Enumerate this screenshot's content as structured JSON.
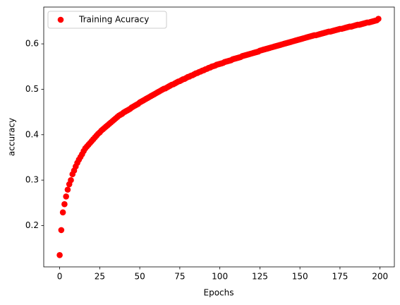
{
  "chart_data": {
    "type": "scatter",
    "xlabel": "Epochs",
    "ylabel": "accuracy",
    "x": [
      0,
      1,
      2,
      3,
      4,
      5,
      6,
      7,
      8,
      9,
      10,
      11,
      12,
      13,
      14,
      15,
      16,
      17,
      18,
      19,
      20,
      21,
      22,
      23,
      24,
      25,
      26,
      27,
      28,
      29,
      30,
      31,
      32,
      33,
      34,
      35,
      36,
      37,
      38,
      39,
      40,
      41,
      42,
      43,
      44,
      45,
      46,
      47,
      48,
      49,
      50,
      51,
      52,
      53,
      54,
      55,
      56,
      57,
      58,
      59,
      60,
      61,
      62,
      63,
      64,
      65,
      66,
      67,
      68,
      69,
      70,
      71,
      72,
      73,
      74,
      75,
      76,
      77,
      78,
      79,
      80,
      81,
      82,
      83,
      84,
      85,
      86,
      87,
      88,
      89,
      90,
      91,
      92,
      93,
      94,
      95,
      96,
      97,
      98,
      99,
      100,
      101,
      102,
      103,
      104,
      105,
      106,
      107,
      108,
      109,
      110,
      111,
      112,
      113,
      114,
      115,
      116,
      117,
      118,
      119,
      120,
      121,
      122,
      123,
      124,
      125,
      126,
      127,
      128,
      129,
      130,
      131,
      132,
      133,
      134,
      135,
      136,
      137,
      138,
      139,
      140,
      141,
      142,
      143,
      144,
      145,
      146,
      147,
      148,
      149,
      150,
      151,
      152,
      153,
      154,
      155,
      156,
      157,
      158,
      159,
      160,
      161,
      162,
      163,
      164,
      165,
      166,
      167,
      168,
      169,
      170,
      171,
      172,
      173,
      174,
      175,
      176,
      177,
      178,
      179,
      180,
      181,
      182,
      183,
      184,
      185,
      186,
      187,
      188,
      189,
      190,
      191,
      192,
      193,
      194,
      195,
      196,
      197,
      198,
      199
    ],
    "series": [
      {
        "name": "Training Acuracy",
        "color": "#ff0000",
        "values": [
          0.135,
          0.19,
          0.229,
          0.247,
          0.264,
          0.279,
          0.291,
          0.3,
          0.313,
          0.321,
          0.33,
          0.338,
          0.345,
          0.351,
          0.357,
          0.364,
          0.37,
          0.374,
          0.378,
          0.382,
          0.386,
          0.39,
          0.394,
          0.398,
          0.402,
          0.405,
          0.409,
          0.412,
          0.415,
          0.418,
          0.421,
          0.424,
          0.427,
          0.43,
          0.433,
          0.436,
          0.439,
          0.442,
          0.444,
          0.446,
          0.449,
          0.451,
          0.453,
          0.455,
          0.457,
          0.46,
          0.462,
          0.464,
          0.466,
          0.468,
          0.471,
          0.473,
          0.475,
          0.477,
          0.479,
          0.481,
          0.483,
          0.485,
          0.487,
          0.489,
          0.491,
          0.493,
          0.495,
          0.497,
          0.499,
          0.501,
          0.502,
          0.504,
          0.506,
          0.508,
          0.51,
          0.511,
          0.513,
          0.515,
          0.517,
          0.518,
          0.52,
          0.522,
          0.523,
          0.525,
          0.527,
          0.528,
          0.53,
          0.531,
          0.533,
          0.535,
          0.536,
          0.538,
          0.539,
          0.541,
          0.542,
          0.544,
          0.545,
          0.547,
          0.548,
          0.55,
          0.551,
          0.552,
          0.554,
          0.555,
          0.556,
          0.557,
          0.558,
          0.56,
          0.561,
          0.562,
          0.563,
          0.564,
          0.566,
          0.567,
          0.568,
          0.569,
          0.57,
          0.571,
          0.573,
          0.574,
          0.575,
          0.576,
          0.577,
          0.578,
          0.579,
          0.58,
          0.581,
          0.582,
          0.583,
          0.585,
          0.586,
          0.587,
          0.588,
          0.589,
          0.59,
          0.591,
          0.592,
          0.593,
          0.594,
          0.595,
          0.596,
          0.597,
          0.598,
          0.599,
          0.6,
          0.601,
          0.602,
          0.603,
          0.604,
          0.605,
          0.606,
          0.607,
          0.608,
          0.609,
          0.61,
          0.611,
          0.612,
          0.613,
          0.614,
          0.615,
          0.616,
          0.617,
          0.618,
          0.619,
          0.619,
          0.62,
          0.621,
          0.622,
          0.623,
          0.624,
          0.625,
          0.626,
          0.627,
          0.627,
          0.628,
          0.629,
          0.63,
          0.631,
          0.632,
          0.633,
          0.633,
          0.634,
          0.635,
          0.636,
          0.637,
          0.638,
          0.638,
          0.639,
          0.64,
          0.641,
          0.642,
          0.642,
          0.643,
          0.644,
          0.645,
          0.646,
          0.647,
          0.647,
          0.648,
          0.649,
          0.65,
          0.651,
          0.652,
          0.655
        ]
      }
    ],
    "xlim": [
      -9.95,
      208.95
    ],
    "xticks": [
      0,
      25,
      50,
      75,
      100,
      125,
      150,
      175,
      200
    ],
    "ylim": [
      0.109,
      0.681
    ],
    "yticks": [
      0.2,
      0.3,
      0.4,
      0.5,
      0.6
    ],
    "legend": "upper left",
    "grid": false
  }
}
